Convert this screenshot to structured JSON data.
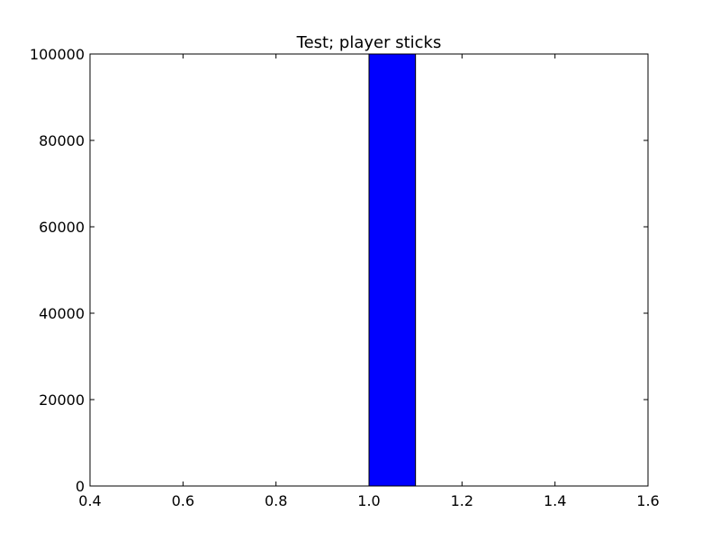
{
  "chart_data": {
    "type": "bar",
    "title": "Test; player sticks",
    "xlabel": "",
    "ylabel": "",
    "xlim": [
      0.4,
      1.6
    ],
    "ylim": [
      0,
      100000
    ],
    "x_ticks": [
      0.4,
      0.6,
      0.8,
      1.0,
      1.2,
      1.4,
      1.6
    ],
    "x_tick_labels": [
      "0.4",
      "0.6",
      "0.8",
      "1.0",
      "1.2",
      "1.4",
      "1.6"
    ],
    "y_ticks": [
      0,
      20000,
      40000,
      60000,
      80000,
      100000
    ],
    "y_tick_labels": [
      "0",
      "20000",
      "40000",
      "60000",
      "80000",
      "100000"
    ],
    "bars": [
      {
        "x0": 0.5,
        "x1": 0.6,
        "value": 0
      },
      {
        "x0": 0.6,
        "x1": 0.7,
        "value": 0
      },
      {
        "x0": 0.7,
        "x1": 0.8,
        "value": 0
      },
      {
        "x0": 0.8,
        "x1": 0.9,
        "value": 0
      },
      {
        "x0": 0.9,
        "x1": 1.0,
        "value": 0
      },
      {
        "x0": 1.0,
        "x1": 1.1,
        "value": 100000
      },
      {
        "x0": 1.1,
        "x1": 1.2,
        "value": 0
      },
      {
        "x0": 1.2,
        "x1": 1.3,
        "value": 0
      },
      {
        "x0": 1.3,
        "x1": 1.4,
        "value": 0
      },
      {
        "x0": 1.4,
        "x1": 1.5,
        "value": 0
      }
    ],
    "bar_color": "#0000ff",
    "edge_color": "#000000",
    "grid": false,
    "legend": "none"
  }
}
